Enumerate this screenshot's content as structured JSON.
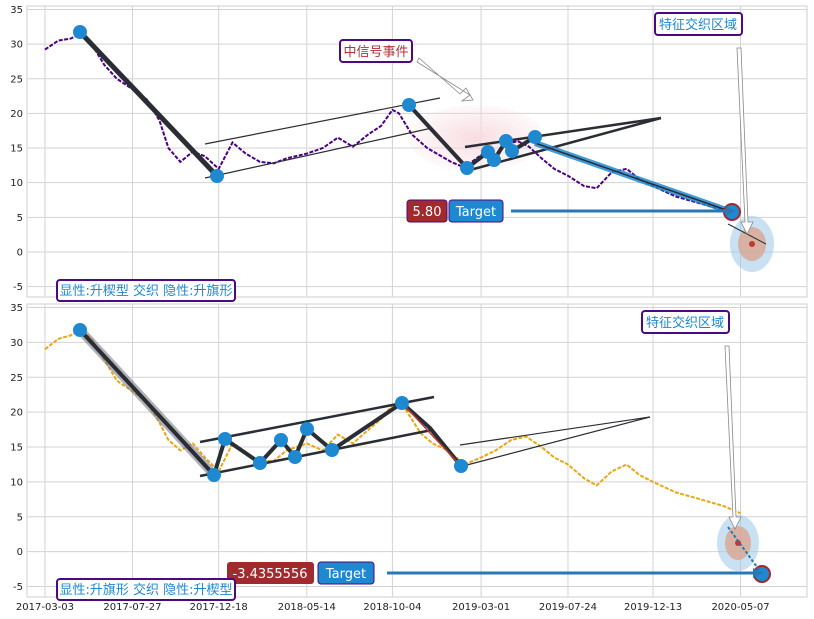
{
  "colors": {
    "price_top": "#4b0082",
    "price_bottom": "#e6a817",
    "node": "#1e88d0",
    "pattern_line": "#2b2d35",
    "target_line": "#2878b5",
    "value_badge": "#a12a2f",
    "target_badge": "#1e88d0",
    "label_text": "#1e88d0",
    "label_border": "#4b0a7d",
    "event_text": "#b0303a"
  },
  "x_ticks": [
    "2017-03-03",
    "2017-07-27",
    "2017-12-18",
    "2018-05-14",
    "2018-10-04",
    "2019-03-01",
    "2019-07-24",
    "2019-12-13",
    "2020-05-07"
  ],
  "panels": [
    {
      "pattern_label": "显性:升楔型 交织 隐性:升旗形",
      "region_label": "特征交织区域",
      "event_label": "中信号事件",
      "value_badge": "5.80",
      "target_label": "Target"
    },
    {
      "pattern_label": "显性:升旗形 交织 隐性:升楔型",
      "region_label": "特征交织区域",
      "value_badge": "-3.4355556",
      "target_label": "Target"
    }
  ],
  "chart_data": [
    {
      "type": "line",
      "title": "",
      "x_ticks": [
        "2017-03-03",
        "2017-07-27",
        "2017-12-18",
        "2018-05-14",
        "2018-10-04",
        "2019-03-01",
        "2019-07-24",
        "2019-12-13",
        "2020-05-07"
      ],
      "y_ticks": [
        -5,
        0,
        5,
        10,
        15,
        20,
        25,
        30,
        35
      ],
      "ylim": [
        -6.5,
        35.5
      ],
      "xlim": [
        "2017-02-01",
        "2020-08-26"
      ],
      "grid": true,
      "series": [
        {
          "color": "#4b0082",
          "points": [
            [
              "2017-03-03",
              29.2
            ],
            [
              "2017-03-25",
              30.5
            ],
            [
              "2017-04-15",
              30.8
            ],
            [
              "2017-05-01",
              31.5
            ],
            [
              "2017-05-20",
              30.0
            ],
            [
              "2017-06-10",
              27.0
            ],
            [
              "2017-07-01",
              25.0
            ],
            [
              "2017-07-27",
              23.5
            ],
            [
              "2017-08-20",
              22.0
            ],
            [
              "2017-09-10",
              19.0
            ],
            [
              "2017-09-25",
              15.0
            ],
            [
              "2017-10-15",
              13.0
            ],
            [
              "2017-11-05",
              14.5
            ],
            [
              "2017-11-25",
              13.8
            ],
            [
              "2017-12-18",
              12.0
            ],
            [
              "2018-01-10",
              15.8
            ],
            [
              "2018-02-01",
              14.2
            ],
            [
              "2018-02-25",
              13.0
            ],
            [
              "2018-03-20",
              12.8
            ],
            [
              "2018-04-10",
              13.5
            ],
            [
              "2018-05-14",
              14.2
            ],
            [
              "2018-06-10",
              15.0
            ],
            [
              "2018-07-05",
              16.5
            ],
            [
              "2018-07-30",
              15.2
            ],
            [
              "2018-08-25",
              17.0
            ],
            [
              "2018-09-15",
              18.2
            ],
            [
              "2018-10-04",
              20.5
            ],
            [
              "2018-10-15",
              20.0
            ],
            [
              "2018-11-05",
              17.0
            ],
            [
              "2018-12-01",
              15.0
            ],
            [
              "2019-01-10",
              13.0
            ],
            [
              "2019-02-01",
              12.2
            ],
            [
              "2019-03-01",
              14.0
            ],
            [
              "2019-03-20",
              13.5
            ],
            [
              "2019-04-10",
              15.5
            ],
            [
              "2019-05-01",
              16.0
            ],
            [
              "2019-05-20",
              15.2
            ],
            [
              "2019-06-10",
              13.5
            ],
            [
              "2019-07-01",
              12.0
            ],
            [
              "2019-07-24",
              11.0
            ],
            [
              "2019-08-20",
              9.5
            ],
            [
              "2019-09-10",
              9.2
            ],
            [
              "2019-10-05",
              11.5
            ],
            [
              "2019-10-30",
              12.0
            ],
            [
              "2019-11-20",
              10.5
            ],
            [
              "2019-12-13",
              9.5
            ],
            [
              "2020-01-20",
              8.0
            ],
            [
              "2020-03-01",
              7.0
            ],
            [
              "2020-04-10",
              6.0
            ],
            [
              "2020-05-07",
              5.5
            ]
          ]
        }
      ]
    },
    {
      "type": "line",
      "title": "",
      "x_ticks": [
        "2017-03-03",
        "2017-07-27",
        "2017-12-18",
        "2018-05-14",
        "2018-10-04",
        "2019-03-01",
        "2019-07-24",
        "2019-12-13",
        "2020-05-07"
      ],
      "y_ticks": [
        -5,
        0,
        5,
        10,
        15,
        20,
        25,
        30,
        35
      ],
      "ylim": [
        -6.5,
        35.5
      ],
      "xlim": [
        "2017-02-01",
        "2020-08-26"
      ],
      "grid": true,
      "series": [
        {
          "color": "#e6a817",
          "points": [
            [
              "2017-03-03",
              29.0
            ],
            [
              "2017-03-25",
              30.5
            ],
            [
              "2017-04-15",
              31.0
            ],
            [
              "2017-05-01",
              31.8
            ],
            [
              "2017-05-20",
              30.5
            ],
            [
              "2017-06-10",
              27.5
            ],
            [
              "2017-07-01",
              24.5
            ],
            [
              "2017-07-27",
              23.0
            ],
            [
              "2017-08-20",
              21.5
            ],
            [
              "2017-09-10",
              18.5
            ],
            [
              "2017-09-25",
              16.0
            ],
            [
              "2017-10-15",
              14.5
            ],
            [
              "2017-11-05",
              15.5
            ],
            [
              "2017-11-25",
              13.5
            ],
            [
              "2017-12-18",
              11.5
            ],
            [
              "2018-01-10",
              15.5
            ],
            [
              "2018-02-01",
              14.0
            ],
            [
              "2018-02-25",
              13.0
            ],
            [
              "2018-03-20",
              13.0
            ],
            [
              "2018-04-10",
              14.5
            ],
            [
              "2018-05-14",
              15.5
            ],
            [
              "2018-06-10",
              14.5
            ],
            [
              "2018-07-05",
              16.8
            ],
            [
              "2018-07-30",
              15.5
            ],
            [
              "2018-08-25",
              17.5
            ],
            [
              "2018-09-15",
              19.0
            ],
            [
              "2018-10-04",
              21.0
            ],
            [
              "2018-10-25",
              20.5
            ],
            [
              "2018-11-20",
              17.0
            ],
            [
              "2018-12-10",
              15.5
            ],
            [
              "2019-01-05",
              14.5
            ],
            [
              "2019-02-01",
              12.5
            ],
            [
              "2019-03-01",
              13.5
            ],
            [
              "2019-03-25",
              14.5
            ],
            [
              "2019-04-20",
              16.0
            ],
            [
              "2019-05-15",
              16.5
            ],
            [
              "2019-06-10",
              15.0
            ],
            [
              "2019-07-01",
              13.5
            ],
            [
              "2019-07-24",
              12.5
            ],
            [
              "2019-08-20",
              10.5
            ],
            [
              "2019-09-10",
              9.5
            ],
            [
              "2019-10-05",
              11.5
            ],
            [
              "2019-10-30",
              12.5
            ],
            [
              "2019-11-20",
              11.0
            ],
            [
              "2019-12-13",
              10.0
            ],
            [
              "2020-01-20",
              8.5
            ],
            [
              "2020-03-01",
              7.5
            ],
            [
              "2020-04-10",
              6.5
            ],
            [
              "2020-05-07",
              5.5
            ]
          ]
        }
      ]
    }
  ]
}
